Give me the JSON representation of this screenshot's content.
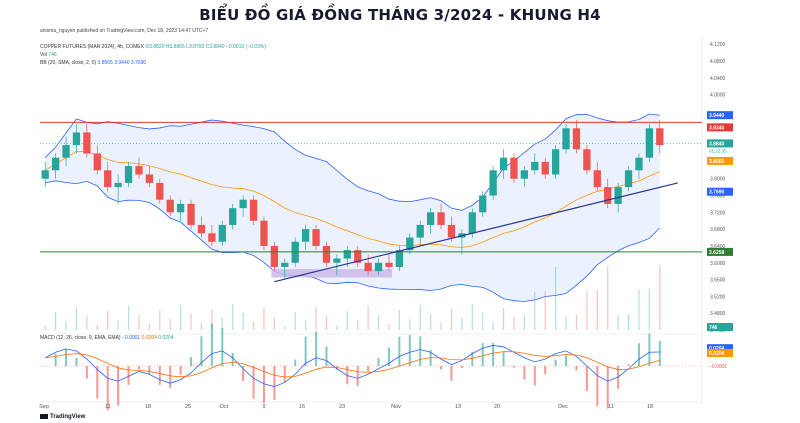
{
  "title": "BIỂU ĐỒ GIÁ ĐỒNG THÁNG 3/2024 - KHUNG H4",
  "published_by": "anisma_nguyen published on TradingView.com, Dec 18, 2023 14:47 UTC+7",
  "symbol_line": "COPPER FUTURES (MAR 2024), 4h, COMEX",
  "ohlc": "O3.8820 H3.8865 L3.8750 C3.8840 −0.0010 (−0.03%)",
  "vol_label": "Vol",
  "vol_value": "746",
  "bb_label": "BB (20, SMA, close, 2, 0)",
  "bb_values": "3.8565  3.9440  3.7690",
  "macd_label": "MACD (12, 26, close, 9, EMA, EMA)",
  "macd_values": [
    "−0.0001",
    "0.0204",
    "0.0204"
  ],
  "brand": "TradingView",
  "colors": {
    "up": "#26a69a",
    "down": "#ef5350",
    "bb_band": "#2962ff",
    "bb_fill": "#e3ebff",
    "bb_basis": "#ff9800",
    "resistance": "#e53935",
    "support": "#2e7d32",
    "trendline": "#283593",
    "support_zone": "#c9b6e8"
  },
  "chart_data": {
    "type": "candlestick",
    "title": "BIỂU ĐỒ GIÁ ĐỒNG THÁNG 3/2024 - KHUNG H4",
    "price_axis": {
      "ticks": [
        "4.1200",
        "4.0800",
        "4.0400",
        "4.0000",
        "3.9200",
        "3.8400",
        "3.8000",
        "3.7600",
        "3.7200",
        "3.6800",
        "3.6400",
        "3.6000",
        "3.5600",
        "3.5200",
        "3.4800",
        "3.4400"
      ],
      "range": [
        3.44,
        4.13
      ]
    },
    "x_ticks": [
      "Sep",
      "11",
      "18",
      "25",
      "Oct",
      "9",
      "16",
      "23",
      "Nov",
      "13",
      "20",
      "Dec",
      "11",
      "18"
    ],
    "levels": {
      "resistance": 3.934,
      "support": 3.6258
    },
    "price_labels": {
      "bb_upper": "3.9440",
      "resistance": "3.9340",
      "last": "3.8840",
      "countdown": "01:22:35",
      "bb_basis": "3.8565",
      "bb_lower": "3.7690",
      "support": "3.6258",
      "volume": "746"
    },
    "macd_labels": {
      "macd": "0.0204",
      "signal": "0.0204",
      "hist": "−0.0001"
    },
    "candles": [
      {
        "o": 3.8,
        "h": 3.84,
        "l": 3.78,
        "c": 3.82
      },
      {
        "o": 3.82,
        "h": 3.86,
        "l": 3.8,
        "c": 3.85
      },
      {
        "o": 3.85,
        "h": 3.9,
        "l": 3.83,
        "c": 3.88
      },
      {
        "o": 3.88,
        "h": 3.93,
        "l": 3.86,
        "c": 3.91
      },
      {
        "o": 3.91,
        "h": 3.93,
        "l": 3.85,
        "c": 3.86
      },
      {
        "o": 3.86,
        "h": 3.88,
        "l": 3.81,
        "c": 3.82
      },
      {
        "o": 3.82,
        "h": 3.84,
        "l": 3.77,
        "c": 3.78
      },
      {
        "o": 3.78,
        "h": 3.81,
        "l": 3.74,
        "c": 3.79
      },
      {
        "o": 3.79,
        "h": 3.84,
        "l": 3.78,
        "c": 3.83
      },
      {
        "o": 3.83,
        "h": 3.85,
        "l": 3.8,
        "c": 3.81
      },
      {
        "o": 3.81,
        "h": 3.83,
        "l": 3.78,
        "c": 3.79
      },
      {
        "o": 3.79,
        "h": 3.8,
        "l": 3.74,
        "c": 3.75
      },
      {
        "o": 3.75,
        "h": 3.76,
        "l": 3.71,
        "c": 3.72
      },
      {
        "o": 3.72,
        "h": 3.75,
        "l": 3.7,
        "c": 3.74
      },
      {
        "o": 3.74,
        "h": 3.75,
        "l": 3.68,
        "c": 3.69
      },
      {
        "o": 3.69,
        "h": 3.71,
        "l": 3.66,
        "c": 3.67
      },
      {
        "o": 3.67,
        "h": 3.69,
        "l": 3.64,
        "c": 3.65
      },
      {
        "o": 3.65,
        "h": 3.7,
        "l": 3.64,
        "c": 3.69
      },
      {
        "o": 3.69,
        "h": 3.74,
        "l": 3.68,
        "c": 3.73
      },
      {
        "o": 3.73,
        "h": 3.76,
        "l": 3.71,
        "c": 3.75
      },
      {
        "o": 3.75,
        "h": 3.76,
        "l": 3.69,
        "c": 3.7
      },
      {
        "o": 3.7,
        "h": 3.71,
        "l": 3.63,
        "c": 3.64
      },
      {
        "o": 3.64,
        "h": 3.65,
        "l": 3.58,
        "c": 3.59
      },
      {
        "o": 3.59,
        "h": 3.61,
        "l": 3.56,
        "c": 3.6
      },
      {
        "o": 3.6,
        "h": 3.66,
        "l": 3.59,
        "c": 3.65
      },
      {
        "o": 3.65,
        "h": 3.69,
        "l": 3.63,
        "c": 3.68
      },
      {
        "o": 3.68,
        "h": 3.69,
        "l": 3.63,
        "c": 3.64
      },
      {
        "o": 3.64,
        "h": 3.65,
        "l": 3.59,
        "c": 3.6
      },
      {
        "o": 3.6,
        "h": 3.62,
        "l": 3.57,
        "c": 3.61
      },
      {
        "o": 3.61,
        "h": 3.64,
        "l": 3.59,
        "c": 3.63
      },
      {
        "o": 3.63,
        "h": 3.64,
        "l": 3.59,
        "c": 3.6
      },
      {
        "o": 3.6,
        "h": 3.62,
        "l": 3.57,
        "c": 3.58
      },
      {
        "o": 3.58,
        "h": 3.61,
        "l": 3.57,
        "c": 3.6
      },
      {
        "o": 3.6,
        "h": 3.62,
        "l": 3.58,
        "c": 3.59
      },
      {
        "o": 3.59,
        "h": 3.64,
        "l": 3.58,
        "c": 3.63
      },
      {
        "o": 3.63,
        "h": 3.67,
        "l": 3.62,
        "c": 3.66
      },
      {
        "o": 3.66,
        "h": 3.7,
        "l": 3.64,
        "c": 3.69
      },
      {
        "o": 3.69,
        "h": 3.73,
        "l": 3.67,
        "c": 3.72
      },
      {
        "o": 3.72,
        "h": 3.74,
        "l": 3.68,
        "c": 3.69
      },
      {
        "o": 3.69,
        "h": 3.71,
        "l": 3.65,
        "c": 3.66
      },
      {
        "o": 3.66,
        "h": 3.68,
        "l": 3.62,
        "c": 3.67
      },
      {
        "o": 3.67,
        "h": 3.73,
        "l": 3.66,
        "c": 3.72
      },
      {
        "o": 3.72,
        "h": 3.77,
        "l": 3.71,
        "c": 3.76
      },
      {
        "o": 3.76,
        "h": 3.83,
        "l": 3.75,
        "c": 3.82
      },
      {
        "o": 3.82,
        "h": 3.87,
        "l": 3.8,
        "c": 3.85
      },
      {
        "o": 3.85,
        "h": 3.86,
        "l": 3.79,
        "c": 3.8
      },
      {
        "o": 3.8,
        "h": 3.83,
        "l": 3.78,
        "c": 3.82
      },
      {
        "o": 3.82,
        "h": 3.86,
        "l": 3.81,
        "c": 3.84
      },
      {
        "o": 3.84,
        "h": 3.85,
        "l": 3.8,
        "c": 3.81
      },
      {
        "o": 3.81,
        "h": 3.88,
        "l": 3.8,
        "c": 3.87
      },
      {
        "o": 3.87,
        "h": 3.93,
        "l": 3.86,
        "c": 3.92
      },
      {
        "o": 3.92,
        "h": 3.94,
        "l": 3.86,
        "c": 3.87
      },
      {
        "o": 3.87,
        "h": 3.88,
        "l": 3.81,
        "c": 3.82
      },
      {
        "o": 3.82,
        "h": 3.84,
        "l": 3.77,
        "c": 3.78
      },
      {
        "o": 3.78,
        "h": 3.8,
        "l": 3.73,
        "c": 3.74
      },
      {
        "o": 3.74,
        "h": 3.79,
        "l": 3.72,
        "c": 3.78
      },
      {
        "o": 3.78,
        "h": 3.83,
        "l": 3.77,
        "c": 3.82
      },
      {
        "o": 3.82,
        "h": 3.86,
        "l": 3.8,
        "c": 3.85
      },
      {
        "o": 3.85,
        "h": 3.93,
        "l": 3.84,
        "c": 3.92
      },
      {
        "o": 3.92,
        "h": 3.94,
        "l": 3.86,
        "c": 3.88
      }
    ],
    "macd_series": [
      0.012,
      0.02,
      0.025,
      0.022,
      0.01,
      -0.005,
      -0.018,
      -0.022,
      -0.015,
      -0.008,
      -0.012,
      -0.02,
      -0.025,
      -0.02,
      -0.01,
      0.005,
      0.018,
      0.022,
      0.012,
      -0.004,
      -0.018,
      -0.026,
      -0.03,
      -0.024,
      -0.012,
      0.004,
      0.012,
      0.008,
      -0.004,
      -0.014,
      -0.018,
      -0.012,
      -0.004,
      0.004,
      0.014,
      0.02,
      0.024,
      0.02,
      0.01,
      0.002,
      0.008,
      0.018,
      0.026,
      0.03,
      0.028,
      0.02,
      0.012,
      0.006,
      0.01,
      0.018,
      0.022,
      0.014,
      0.0,
      -0.014,
      -0.022,
      -0.016,
      -0.004,
      0.01,
      0.02,
      0.0204
    ]
  }
}
